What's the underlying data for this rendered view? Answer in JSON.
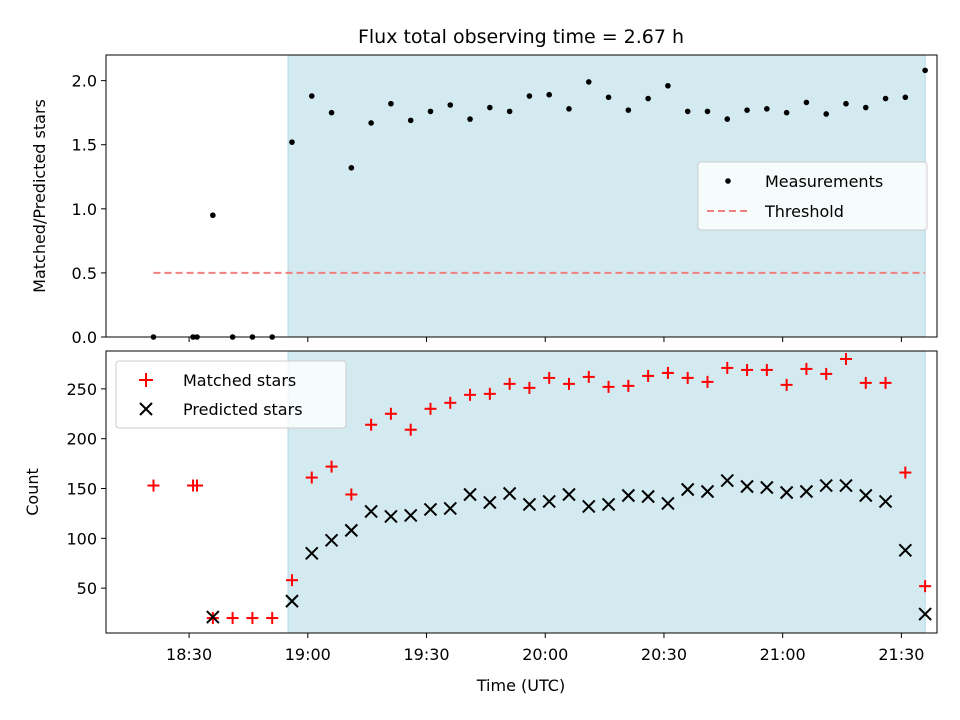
{
  "chart_data": {
    "type": "scatter",
    "title": "Flux total observing time = 2.67 h",
    "xlabel": "Time (UTC)",
    "x_ticks": [
      "18:30",
      "19:00",
      "19:30",
      "20:00",
      "20:30",
      "21:00",
      "21:30"
    ],
    "x_tick_minutes": [
      1110,
      1140,
      1170,
      1200,
      1230,
      1260,
      1290
    ],
    "x_range_minutes": [
      1089,
      1299
    ],
    "shaded_span_minutes": [
      1135,
      1296
    ],
    "shade_color": "#d3eaf0",
    "panels": [
      {
        "ylabel": "Matched/Predicted stars",
        "ylim": [
          0,
          2.2
        ],
        "y_ticks": [
          0.0,
          0.5,
          1.0,
          1.5,
          2.0
        ],
        "y_tick_labels": [
          "0.0",
          "0.5",
          "1.0",
          "1.5",
          "2.0"
        ],
        "legend": {
          "position": "center-right",
          "entries": [
            "Measurements",
            "Threshold"
          ]
        },
        "threshold": {
          "name": "Threshold",
          "value": 0.5,
          "x_start": 1101,
          "x_end": 1296,
          "color": "#f08080"
        },
        "series": [
          {
            "name": "Measurements",
            "marker": "dot",
            "color": "#000000",
            "x": [
              1101,
              1111,
              1112,
              1116,
              1121,
              1126,
              1131,
              1136,
              1141,
              1146,
              1151,
              1156,
              1161,
              1166,
              1171,
              1176,
              1181,
              1186,
              1191,
              1196,
              1201,
              1206,
              1211,
              1216,
              1221,
              1226,
              1231,
              1236,
              1241,
              1246,
              1251,
              1256,
              1261,
              1266,
              1271,
              1276,
              1281,
              1286,
              1291,
              1296
            ],
            "y": [
              0.0,
              0.0,
              0.0,
              0.95,
              0.0,
              0.0,
              0.0,
              1.52,
              1.88,
              1.75,
              1.32,
              1.67,
              1.82,
              1.69,
              1.76,
              1.81,
              1.7,
              1.79,
              1.76,
              1.88,
              1.89,
              1.78,
              1.99,
              1.87,
              1.77,
              1.86,
              1.96,
              1.76,
              1.76,
              1.7,
              1.77,
              1.78,
              1.75,
              1.83,
              1.74,
              1.82,
              1.79,
              1.86,
              1.87,
              2.08
            ]
          }
        ]
      },
      {
        "ylabel": "Count",
        "ylim": [
          5,
          288
        ],
        "y_ticks": [
          50,
          100,
          150,
          200,
          250
        ],
        "y_tick_labels": [
          "50",
          "100",
          "150",
          "200",
          "250"
        ],
        "legend": {
          "position": "top-left",
          "entries": [
            "Matched stars",
            "Predicted stars"
          ]
        },
        "series": [
          {
            "name": "Matched stars",
            "marker": "plus",
            "color": "#ff0000",
            "x": [
              1101,
              1111,
              1112,
              1116,
              1121,
              1126,
              1131,
              1136,
              1141,
              1146,
              1151,
              1156,
              1161,
              1166,
              1171,
              1176,
              1181,
              1186,
              1191,
              1196,
              1201,
              1206,
              1211,
              1216,
              1221,
              1226,
              1231,
              1236,
              1241,
              1246,
              1251,
              1256,
              1261,
              1266,
              1271,
              1276,
              1281,
              1286,
              1291,
              1296
            ],
            "y": [
              153,
              153,
              153,
              20,
              20,
              20,
              20,
              58,
              161,
              172,
              144,
              214,
              225,
              209,
              230,
              236,
              244,
              245,
              255,
              251,
              261,
              255,
              262,
              252,
              253,
              263,
              266,
              261,
              257,
              271,
              269,
              269,
              254,
              270,
              265,
              280,
              256,
              256,
              166,
              52
            ]
          },
          {
            "name": "Predicted stars",
            "marker": "cross",
            "color": "#000000",
            "x": [
              1116,
              1136,
              1141,
              1146,
              1151,
              1156,
              1161,
              1166,
              1171,
              1176,
              1181,
              1186,
              1191,
              1196,
              1201,
              1206,
              1211,
              1216,
              1221,
              1226,
              1231,
              1236,
              1241,
              1246,
              1251,
              1256,
              1261,
              1266,
              1271,
              1276,
              1281,
              1286,
              1291,
              1296
            ],
            "y": [
              21,
              37,
              85,
              98,
              108,
              127,
              122,
              123,
              129,
              130,
              144,
              136,
              145,
              134,
              137,
              144,
              132,
              134,
              143,
              142,
              135,
              149,
              147,
              158,
              152,
              151,
              146,
              147,
              153,
              153,
              143,
              137,
              88,
              24
            ]
          }
        ]
      }
    ]
  }
}
